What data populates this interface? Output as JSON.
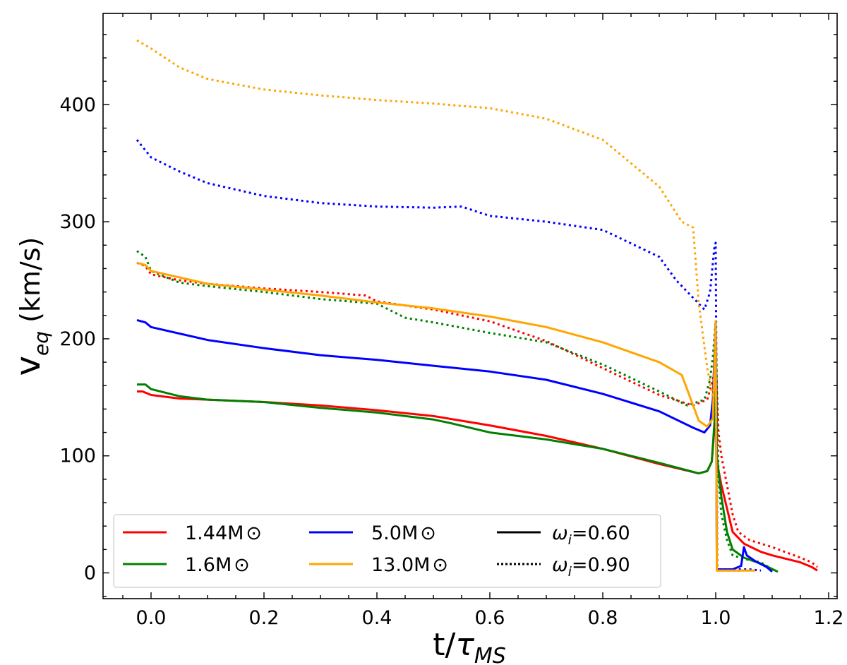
{
  "chart_data": {
    "type": "line",
    "title": "",
    "xlabel": "t/τMS",
    "ylabel": "veq (km/s)",
    "xlim": [
      -0.085,
      1.215
    ],
    "ylim": [
      -22,
      478
    ],
    "xticks": [
      0.0,
      0.2,
      0.4,
      0.6,
      0.8,
      1.0,
      1.2
    ],
    "yticks": [
      0,
      100,
      200,
      300,
      400
    ],
    "xtick_labels": [
      "0.0",
      "0.2",
      "0.4",
      "0.6",
      "0.8",
      "1.0",
      "1.2"
    ],
    "ytick_labels": [
      "0",
      "100",
      "200",
      "300",
      "400"
    ],
    "grid": false,
    "legend": {
      "position": "lower-left",
      "mass_entries": [
        {
          "label": "1.44M",
          "symbol": "⊙",
          "color": "#ff0000"
        },
        {
          "label": "1.6M",
          "symbol": "⊙",
          "color": "#008000"
        },
        {
          "label": "5.0M",
          "symbol": "⊙",
          "color": "#0000ff"
        },
        {
          "label": "13.0M",
          "symbol": "⊙",
          "color": "#ffa500"
        }
      ],
      "style_entries": [
        {
          "symbol": "ω",
          "subscript": "i",
          "value": "=0.60",
          "style": "solid"
        },
        {
          "symbol": "ω",
          "subscript": "i",
          "value": "=0.90",
          "style": "dotted"
        }
      ]
    },
    "series": [
      {
        "mass": "1.44M⊙",
        "omega": "0.60",
        "color": "#ff0000",
        "style": "solid",
        "x": [
          -0.025,
          -0.015,
          0.0,
          0.05,
          0.1,
          0.2,
          0.3,
          0.4,
          0.5,
          0.55,
          0.6,
          0.7,
          0.8,
          0.9,
          0.97,
          0.985,
          0.993,
          0.998,
          1.0,
          1.002,
          1.01,
          1.02,
          1.03,
          1.05,
          1.08,
          1.1,
          1.15,
          1.17,
          1.18
        ],
        "y": [
          155,
          155,
          152,
          149,
          148,
          146,
          143,
          139,
          134,
          130,
          126,
          117,
          106,
          93,
          85,
          87,
          95,
          125,
          190,
          95,
          75,
          55,
          35,
          25,
          18,
          15,
          9,
          5,
          2
        ]
      },
      {
        "mass": "1.44M⊙",
        "omega": "0.90",
        "color": "#ff0000",
        "style": "dotted",
        "x": [
          -0.025,
          -0.01,
          0.0,
          0.05,
          0.1,
          0.2,
          0.3,
          0.38,
          0.4,
          0.5,
          0.6,
          0.7,
          0.8,
          0.9,
          0.96,
          0.985,
          0.995,
          1.0,
          1.005,
          1.01,
          1.02,
          1.03,
          1.04,
          1.06,
          1.1,
          1.15,
          1.17,
          1.18
        ],
        "y": [
          265,
          262,
          255,
          250,
          247,
          243,
          240,
          237,
          232,
          225,
          215,
          198,
          175,
          152,
          143,
          148,
          165,
          180,
          120,
          100,
          75,
          50,
          35,
          28,
          22,
          13,
          9,
          5
        ]
      },
      {
        "mass": "1.6M⊙",
        "omega": "0.60",
        "color": "#008000",
        "style": "solid",
        "x": [
          -0.025,
          -0.01,
          0.0,
          0.05,
          0.1,
          0.2,
          0.3,
          0.4,
          0.5,
          0.53,
          0.6,
          0.7,
          0.8,
          0.9,
          0.97,
          0.985,
          0.993,
          0.998,
          1.0,
          1.002,
          1.01,
          1.02,
          1.03,
          1.05,
          1.08,
          1.11
        ],
        "y": [
          161,
          161,
          157,
          151,
          148,
          146,
          141,
          137,
          131,
          128,
          120,
          114,
          106,
          94,
          85,
          87,
          95,
          130,
          190,
          100,
          65,
          35,
          20,
          13,
          8,
          1
        ]
      },
      {
        "mass": "1.6M⊙",
        "omega": "0.90",
        "color": "#008000",
        "style": "dotted",
        "x": [
          -0.025,
          -0.01,
          0.0,
          0.05,
          0.1,
          0.2,
          0.3,
          0.4,
          0.45,
          0.5,
          0.6,
          0.7,
          0.8,
          0.9,
          0.95,
          0.98,
          0.99,
          0.995,
          1.0,
          1.005,
          1.01,
          1.02,
          1.03,
          1.05,
          1.08,
          1.1
        ],
        "y": [
          275,
          270,
          258,
          248,
          245,
          240,
          234,
          230,
          218,
          214,
          205,
          197,
          178,
          155,
          143,
          148,
          165,
          185,
          215,
          80,
          50,
          28,
          15,
          12,
          9,
          3
        ]
      },
      {
        "mass": "5.0M⊙",
        "omega": "0.60",
        "color": "#0000ff",
        "style": "solid",
        "x": [
          -0.025,
          -0.01,
          0.0,
          0.1,
          0.2,
          0.3,
          0.4,
          0.5,
          0.6,
          0.7,
          0.8,
          0.9,
          0.96,
          0.98,
          0.99,
          0.995,
          1.0,
          1.002,
          1.01,
          1.03,
          1.045,
          1.05,
          1.055,
          1.07,
          1.09,
          1.1
        ],
        "y": [
          216,
          214,
          210,
          199,
          192,
          186,
          182,
          177,
          172,
          165,
          153,
          138,
          124,
          120,
          126,
          148,
          215,
          3,
          3,
          3,
          6,
          22,
          15,
          10,
          5,
          1
        ]
      },
      {
        "mass": "5.0M⊙",
        "omega": "0.90",
        "color": "#0000ff",
        "style": "dotted",
        "x": [
          -0.025,
          0.0,
          0.05,
          0.1,
          0.2,
          0.3,
          0.4,
          0.5,
          0.55,
          0.6,
          0.7,
          0.8,
          0.9,
          0.93,
          0.96,
          0.98,
          0.99,
          0.998,
          1.0,
          1.003,
          1.01,
          1.03,
          1.05,
          1.06,
          1.08
        ],
        "y": [
          370,
          355,
          343,
          333,
          322,
          316,
          313,
          312,
          313,
          305,
          300,
          293,
          270,
          250,
          235,
          225,
          240,
          280,
          282,
          3,
          3,
          3,
          3,
          3,
          2
        ]
      },
      {
        "mass": "13.0M⊙",
        "omega": "0.60",
        "color": "#ffa500",
        "style": "solid",
        "x": [
          -0.025,
          -0.01,
          0.0,
          0.1,
          0.2,
          0.3,
          0.4,
          0.5,
          0.6,
          0.7,
          0.8,
          0.9,
          0.94,
          0.97,
          0.985,
          0.995,
          1.0,
          1.002,
          1.01,
          1.03,
          1.05,
          1.07
        ],
        "y": [
          265,
          263,
          258,
          247,
          242,
          237,
          231,
          226,
          219,
          210,
          197,
          180,
          169,
          130,
          125,
          132,
          215,
          2,
          2,
          2,
          2,
          2
        ]
      },
      {
        "mass": "13.0M⊙",
        "omega": "0.90",
        "color": "#ffa500",
        "style": "dotted",
        "x": [
          -0.025,
          0.0,
          0.05,
          0.1,
          0.2,
          0.3,
          0.4,
          0.5,
          0.6,
          0.7,
          0.8,
          0.9,
          0.94,
          0.96,
          0.97,
          0.985,
          0.995,
          1.0,
          1.003,
          1.01,
          1.03,
          1.05
        ],
        "y": [
          455,
          448,
          432,
          422,
          413,
          408,
          404,
          401,
          397,
          388,
          370,
          330,
          300,
          295,
          230,
          175,
          150,
          170,
          2,
          2,
          2,
          2
        ]
      }
    ]
  }
}
